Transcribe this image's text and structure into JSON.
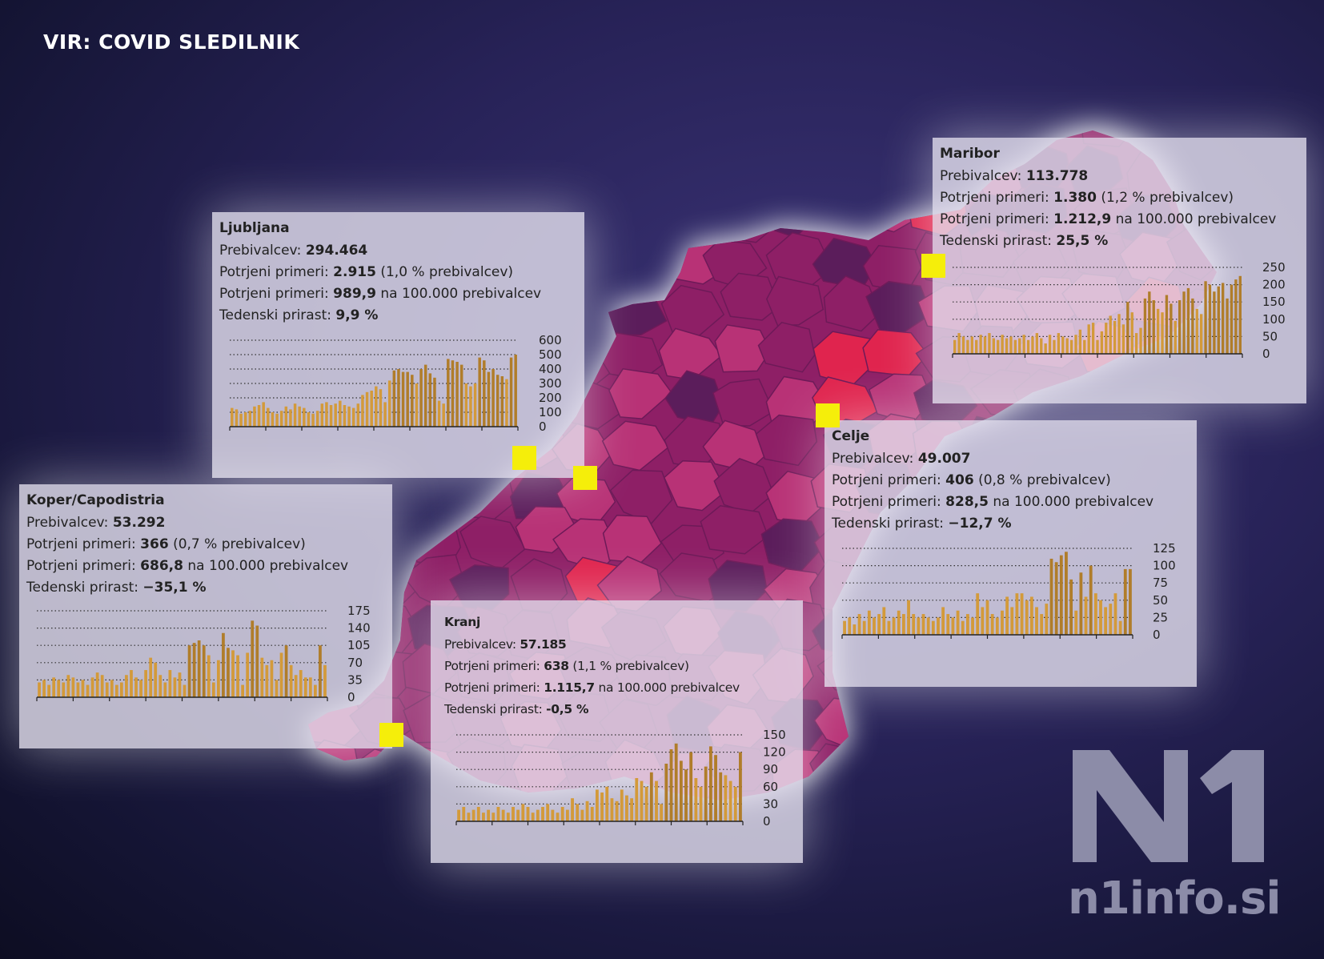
{
  "source_title": "VIR: COVID SLEDILNIK",
  "logo": {
    "text": "n1info.si",
    "mark": "N1"
  },
  "colors": {
    "bar": "#d39a3a",
    "bar_dark": "#b07d2a",
    "marker": "#f5ee0a",
    "map_base": "#8e1f66",
    "map_light": "#b83276",
    "map_dark": "#5b1d5b",
    "map_hot": "#e0244e"
  },
  "labels": {
    "population": "Prebivalcev:",
    "confirmed": "Potrjeni primeri:",
    "weekly": "Tedenski prirast:",
    "pct_suffix": "prebivalcev)",
    "per100k_suffix": "na 100.000 prebivalcev"
  },
  "chart_data": [
    {
      "type": "bar",
      "title": "Ljubljana",
      "population": "294.464",
      "confirmed": "2.915",
      "confirmed_pct": "(1,0 %",
      "per100k": "989,9",
      "weekly_growth": "9,9 %",
      "yticks": [
        "600",
        "500",
        "400",
        "300",
        "200",
        "100",
        "0"
      ],
      "ylim": [
        0,
        600
      ],
      "values": [
        130,
        120,
        90,
        100,
        110,
        140,
        150,
        170,
        130,
        100,
        90,
        110,
        140,
        120,
        160,
        140,
        130,
        100,
        90,
        110,
        160,
        170,
        150,
        160,
        180,
        150,
        140,
        130,
        160,
        220,
        240,
        250,
        280,
        260,
        170,
        320,
        390,
        400,
        380,
        380,
        360,
        300,
        400,
        430,
        370,
        340,
        180,
        160,
        470,
        460,
        450,
        430,
        300,
        280,
        300,
        480,
        460,
        380,
        400,
        360,
        350,
        330,
        480,
        500
      ]
    },
    {
      "type": "bar",
      "title": "Maribor",
      "population": "113.778",
      "confirmed": "1.380",
      "confirmed_pct": "(1,2 %",
      "per100k": "1.212,9",
      "weekly_growth": "25,5 %",
      "yticks": [
        "250",
        "200",
        "150",
        "100",
        "50",
        "0"
      ],
      "ylim": [
        0,
        250
      ],
      "values": [
        40,
        60,
        50,
        40,
        50,
        40,
        55,
        50,
        60,
        45,
        40,
        55,
        45,
        50,
        40,
        45,
        55,
        40,
        50,
        60,
        45,
        30,
        55,
        40,
        60,
        50,
        45,
        40,
        55,
        70,
        40,
        85,
        90,
        40,
        65,
        90,
        110,
        95,
        115,
        85,
        150,
        120,
        60,
        75,
        160,
        180,
        155,
        130,
        120,
        170,
        145,
        95,
        155,
        180,
        190,
        160,
        130,
        115,
        210,
        200,
        180,
        195,
        205,
        160,
        200,
        215,
        225
      ]
    },
    {
      "type": "bar",
      "title": "Celje",
      "population": "49.007",
      "confirmed": "406",
      "confirmed_pct": "(0,8 %",
      "per100k": "828,5",
      "weekly_growth": "−12,7 %",
      "yticks": [
        "125",
        "100",
        "75",
        "50",
        "25",
        "0"
      ],
      "ylim": [
        0,
        125
      ],
      "values": [
        20,
        25,
        15,
        30,
        20,
        35,
        25,
        30,
        40,
        20,
        25,
        35,
        30,
        50,
        30,
        25,
        30,
        25,
        20,
        25,
        40,
        30,
        25,
        35,
        20,
        30,
        25,
        60,
        40,
        50,
        30,
        25,
        35,
        55,
        40,
        60,
        60,
        50,
        55,
        40,
        30,
        45,
        110,
        105,
        115,
        120,
        80,
        35,
        90,
        55,
        100,
        60,
        50,
        40,
        45,
        60,
        20,
        95,
        95
      ]
    },
    {
      "type": "bar",
      "title": "Koper/Capodistria",
      "population": "53.292",
      "confirmed": "366",
      "confirmed_pct": "(0,7 %",
      "per100k": "686,8",
      "weekly_growth": "−35,1 %",
      "yticks": [
        "175",
        "140",
        "105",
        "70",
        "35",
        "0"
      ],
      "ylim": [
        0,
        175
      ],
      "values": [
        30,
        35,
        25,
        40,
        35,
        30,
        45,
        40,
        30,
        35,
        25,
        40,
        50,
        45,
        30,
        35,
        25,
        30,
        45,
        55,
        40,
        35,
        55,
        80,
        70,
        45,
        30,
        55,
        40,
        50,
        25,
        105,
        110,
        115,
        105,
        85,
        30,
        75,
        130,
        100,
        95,
        85,
        25,
        90,
        155,
        145,
        80,
        65,
        75,
        35,
        90,
        105,
        65,
        45,
        55,
        40,
        40,
        25,
        105,
        65
      ]
    },
    {
      "type": "bar",
      "title": "Kranj",
      "population": "57.185",
      "confirmed": "638",
      "confirmed_pct": "(1,1 %",
      "per100k": "1.115,7",
      "weekly_growth": "-0,5 %",
      "yticks": [
        "150",
        "120",
        "90",
        "60",
        "30",
        "0"
      ],
      "ylim": [
        0,
        150
      ],
      "values": [
        20,
        25,
        15,
        20,
        25,
        15,
        20,
        15,
        25,
        20,
        15,
        25,
        20,
        30,
        25,
        15,
        20,
        25,
        30,
        20,
        15,
        25,
        20,
        40,
        30,
        20,
        35,
        25,
        55,
        50,
        60,
        40,
        35,
        55,
        45,
        40,
        75,
        70,
        60,
        85,
        70,
        30,
        100,
        125,
        135,
        105,
        90,
        120,
        75,
        60,
        95,
        130,
        115,
        85,
        80,
        70,
        60,
        120
      ]
    }
  ]
}
